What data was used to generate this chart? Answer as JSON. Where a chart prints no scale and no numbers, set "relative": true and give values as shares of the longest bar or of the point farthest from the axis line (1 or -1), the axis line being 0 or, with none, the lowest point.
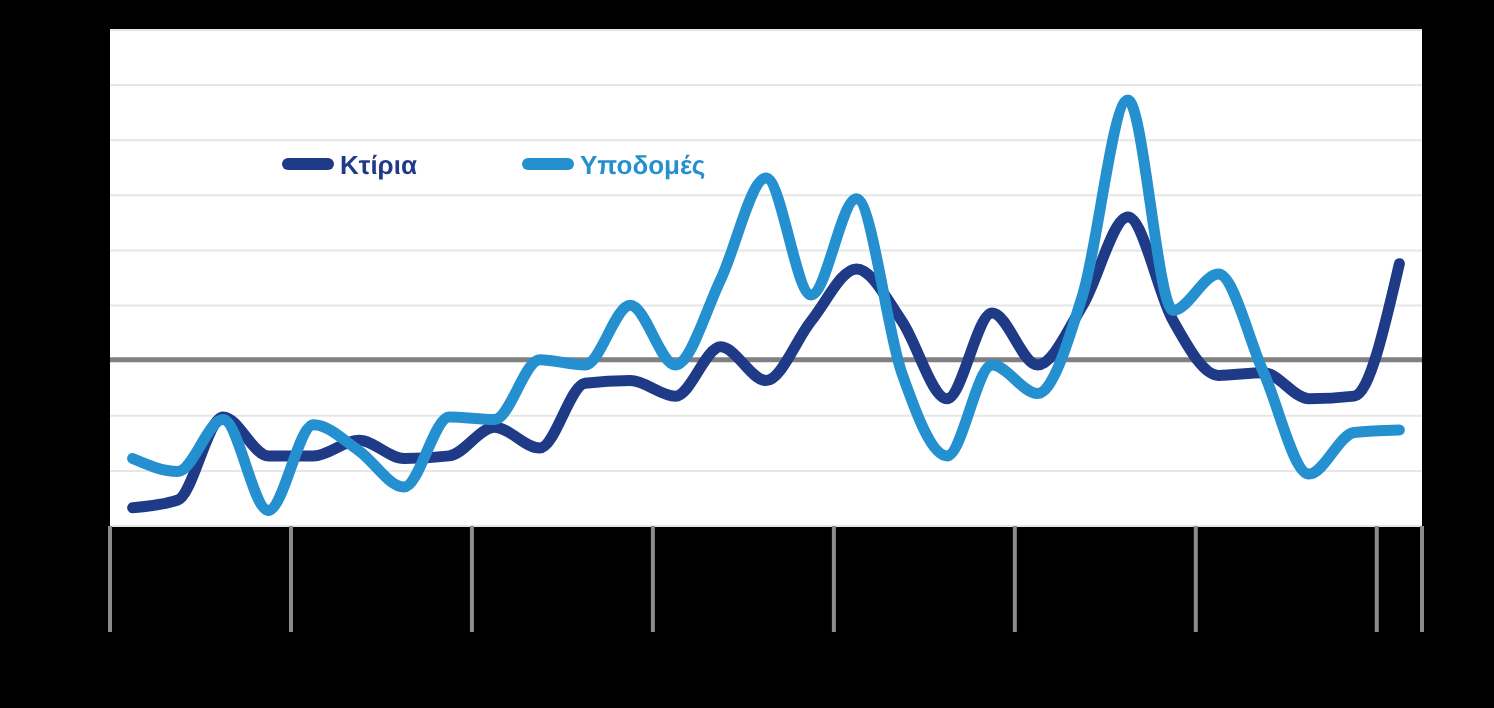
{
  "chart_data": {
    "type": "line",
    "relative": true,
    "grid": "y",
    "legend": "top left",
    "line_style": "solid",
    "marker": "none",
    "categories": [
      null,
      null,
      null,
      null,
      null,
      null,
      null,
      null,
      null,
      null,
      null,
      null,
      null,
      null,
      null,
      null,
      null,
      null,
      null,
      null,
      null,
      null,
      null,
      null,
      null,
      null,
      null,
      null,
      null
    ],
    "series": [
      {
        "name": "Κτίρια",
        "color": "#1f3a87",
        "values": [
          -0.57,
          -0.54,
          -0.22,
          -0.37,
          -0.37,
          -0.31,
          -0.38,
          -0.37,
          -0.26,
          -0.34,
          -0.09,
          -0.08,
          -0.14,
          0.05,
          -0.08,
          0.15,
          0.35,
          0.15,
          -0.15,
          0.18,
          -0.02,
          0.21,
          0.55,
          0.15,
          -0.06,
          -0.05,
          -0.15,
          -0.14,
          0.37
        ]
      },
      {
        "name": "Υποδομές",
        "color": "#2490d0",
        "values": [
          -0.38,
          -0.43,
          -0.23,
          -0.58,
          -0.25,
          -0.35,
          -0.49,
          -0.22,
          -0.23,
          0,
          -0.02,
          0.21,
          -0.02,
          0.31,
          0.7,
          0.25,
          0.62,
          -0.05,
          -0.37,
          -0.02,
          -0.13,
          0.25,
          1,
          0.19,
          0.33,
          -0.05,
          -0.44,
          -0.28,
          -0.27
        ]
      }
    ]
  }
}
